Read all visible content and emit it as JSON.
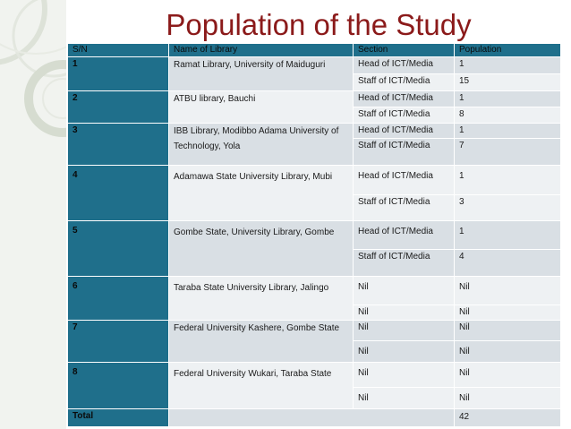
{
  "title": "Population of the Study",
  "headers": {
    "sn": "S/N",
    "library": "Name of Library",
    "section": "Section",
    "population": "Population"
  },
  "rows": [
    {
      "sn": "1",
      "library": "Ramat Library, University of Maiduguri",
      "entries": [
        {
          "section": "Head of ICT/Media",
          "population": "1"
        },
        {
          "section": "Staff of ICT/Media",
          "population": "15"
        }
      ]
    },
    {
      "sn": "2",
      "library": "ATBU library, Bauchi",
      "entries": [
        {
          "section": "Head of ICT/Media",
          "population": "1"
        },
        {
          "section": "Staff of ICT/Media",
          "population": "8"
        }
      ]
    },
    {
      "sn": "3",
      "library": "IBB Library, Modibbo Adama University of Technology, Yola",
      "entries": [
        {
          "section": "Head of ICT/Media",
          "population": "1"
        },
        {
          "section": "Staff of ICT/Media",
          "population": "7"
        }
      ]
    },
    {
      "sn": "4",
      "library": "Adamawa State University Library, Mubi",
      "entries": [
        {
          "section": "Head of ICT/Media",
          "population": "1"
        },
        {
          "section": "Staff of ICT/Media",
          "population": "3"
        }
      ]
    },
    {
      "sn": "5",
      "library": "Gombe State, University Library, Gombe",
      "entries": [
        {
          "section": "Head of ICT/Media",
          "population": "1"
        },
        {
          "section": "Staff of ICT/Media",
          "population": "4"
        }
      ]
    },
    {
      "sn": "6",
      "library": "Taraba State University Library, Jalingo",
      "entries": [
        {
          "section": "Nil",
          "population": "Nil"
        },
        {
          "section": "Nil",
          "population": "Nil"
        }
      ]
    },
    {
      "sn": "7",
      "library": "Federal University Kashere, Gombe State",
      "entries": [
        {
          "section": "Nil",
          "population": "Nil"
        },
        {
          "section": "Nil",
          "population": "Nil"
        }
      ]
    },
    {
      "sn": "8",
      "library": "Federal University Wukari, Taraba State",
      "entries": [
        {
          "section": "Nil",
          "population": "Nil"
        },
        {
          "section": "Nil",
          "population": "Nil"
        }
      ]
    }
  ],
  "total": {
    "label": "Total",
    "population": "42"
  },
  "colors": {
    "header": "#1f6f8b",
    "title": "#8b1a1a",
    "band_dark": "#d9dfe4",
    "band_light": "#eef1f3"
  }
}
